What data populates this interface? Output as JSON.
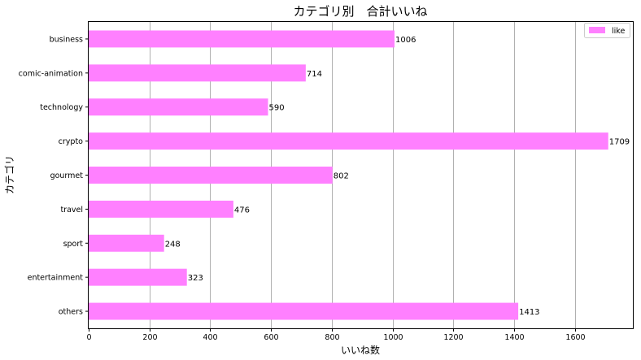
{
  "chart_data": {
    "type": "bar",
    "orientation": "horizontal",
    "title": "カテゴリ別　合計いいね",
    "xlabel": "いいね数",
    "ylabel": "カテゴリ",
    "categories": [
      "business",
      "comic-animation",
      "technology",
      "crypto",
      "gourmet",
      "travel",
      "sport",
      "entertainment",
      "others"
    ],
    "series": [
      {
        "name": "like",
        "values": [
          1006,
          714,
          590,
          1709,
          802,
          476,
          248,
          323,
          1413
        ],
        "color": "#ff80ff"
      }
    ],
    "xlim": [
      0,
      1790
    ],
    "xticks": [
      0,
      200,
      400,
      600,
      800,
      1000,
      1200,
      1400,
      1600
    ],
    "grid": {
      "x": true,
      "y": false
    },
    "legend": {
      "position": "top-right"
    },
    "data_labels": true
  }
}
